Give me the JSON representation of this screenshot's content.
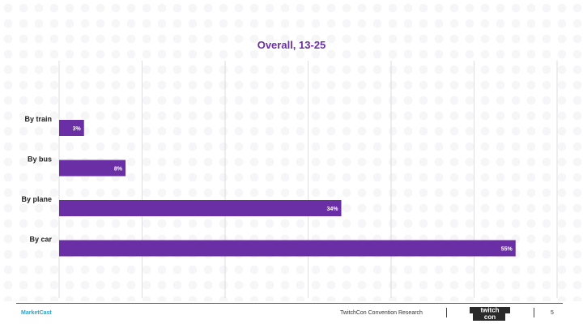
{
  "chart_data": {
    "type": "bar",
    "orientation": "horizontal",
    "title": "Overall, 13-25",
    "categories": [
      "By train",
      "By bus",
      "By plane",
      "By car"
    ],
    "values": [
      3,
      8,
      34,
      55
    ],
    "value_labels": [
      "3%",
      "8%",
      "34%",
      "55%"
    ],
    "xlim": [
      0,
      60
    ],
    "grid": true,
    "legend": "none",
    "bar_color": "#6a2fa4"
  },
  "footer": {
    "brand": "MarketCast",
    "center_text": "TwitchCon Convention Research",
    "logo": "twitchcon-logo",
    "page_number": "5"
  }
}
